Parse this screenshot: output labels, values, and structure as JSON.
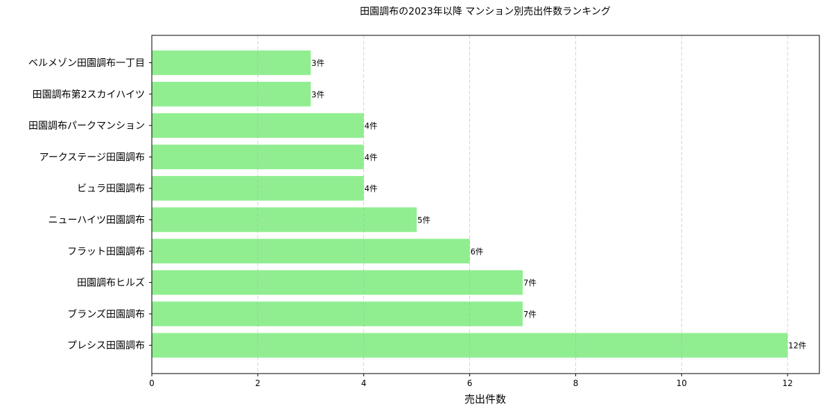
{
  "chart_data": {
    "type": "bar",
    "orientation": "horizontal",
    "title": "田園調布の2023年以降 マンション別売出件数ランキング",
    "xlabel": "売出件数",
    "ylabel": "",
    "categories": [
      "ベルメゾン田園調布一丁目",
      "田園調布第2スカイハイツ",
      "田園調布パークマンション",
      "アークステージ田園調布",
      "ビュラ田園調布",
      "ニューハイツ田園調布",
      "フラット田園調布",
      "田園調布ヒルズ",
      "ブランズ田園調布",
      "プレシス田園調布"
    ],
    "values": [
      3,
      3,
      4,
      4,
      4,
      5,
      6,
      7,
      7,
      12
    ],
    "data_labels": [
      "3件",
      "3件",
      "4件",
      "4件",
      "4件",
      "5件",
      "6件",
      "7件",
      "7件",
      "12件"
    ],
    "xticks": [
      "0",
      "2",
      "4",
      "6",
      "8",
      "10",
      "12"
    ],
    "xlim": [
      0,
      12.6
    ],
    "grid": "x, dashed",
    "bar_color": "#90EE90"
  }
}
